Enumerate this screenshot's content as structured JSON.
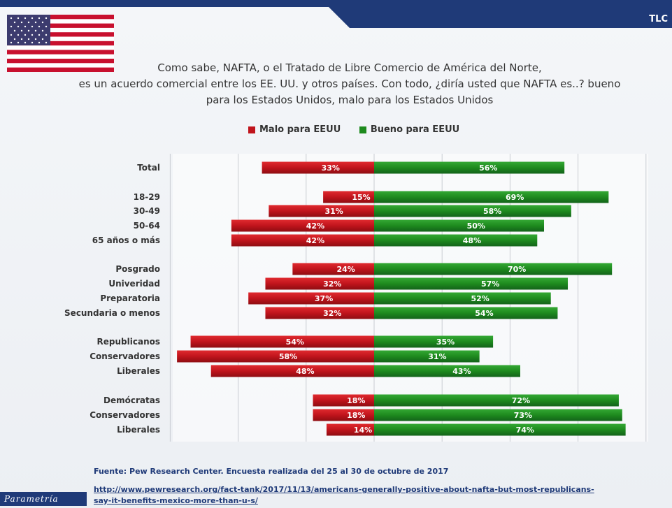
{
  "header": {
    "tlc_label": "TLC"
  },
  "question": {
    "line1": "Como sabe, NAFTA, o el Tratado de Libre Comercio de América del Norte,",
    "line2": "es un acuerdo comercial entre los EE. UU. y otros países. Con todo, ¿diría usted que NAFTA es..? bueno",
    "line3": "para los Estados Unidos, malo para los Estados Unidos"
  },
  "colors": {
    "bad": "#c0141c",
    "good": "#1e8a1e",
    "band": "#1f3a78"
  },
  "chart_data": {
    "type": "bar",
    "orientation": "horizontal-diverging",
    "series": [
      {
        "name": "Malo para EEUU",
        "values": [
          33,
          15,
          31,
          42,
          42,
          24,
          32,
          37,
          32,
          54,
          58,
          48,
          18,
          18,
          14
        ]
      },
      {
        "name": "Bueno para EEUU",
        "values": [
          56,
          69,
          58,
          50,
          48,
          70,
          57,
          52,
          54,
          35,
          31,
          43,
          72,
          73,
          74
        ]
      }
    ],
    "categories": [
      "Total",
      "18-29",
      "30-49",
      "50-64",
      "65 años o más",
      "Posgrado",
      "Univeridad",
      "Preparatoria",
      "Secundaria o menos",
      "Republicanos",
      "Conservadores",
      "Liberales",
      "Demócratas",
      "Conservadores",
      "Liberales"
    ],
    "groups": [
      [
        0
      ],
      [
        1,
        2,
        3,
        4
      ],
      [
        5,
        6,
        7,
        8
      ],
      [
        9,
        10,
        11
      ],
      [
        12,
        13,
        14
      ]
    ],
    "data_labels": {
      "bad": [
        "33%",
        "15%",
        "31%",
        "42%",
        "42%",
        "24%",
        "32%",
        "37%",
        "32%",
        "54%",
        "58%",
        "48%",
        "18%",
        "18%",
        "14%"
      ],
      "good": [
        "56%",
        "69%",
        "58%",
        "50%",
        "48%",
        "70%",
        "57%",
        "52%",
        "54%",
        "35%",
        "31%",
        "43%",
        "72%",
        "73%",
        "74%"
      ]
    },
    "xlim": [
      -60,
      80
    ],
    "grid": true,
    "legend_position": "top"
  },
  "footer": {
    "source": "Fuente: Pew Research Center. Encuesta realizada del 25 al 30 de octubre de 2017",
    "link_line1": "http://www.pewresearch.org/fact-tank/2017/11/13/americans-generally-positive-about-nafta-but-most-republicans-",
    "link_line2": "say-it-benefits-mexico-more-than-u-s/",
    "brand": "Parametría"
  }
}
